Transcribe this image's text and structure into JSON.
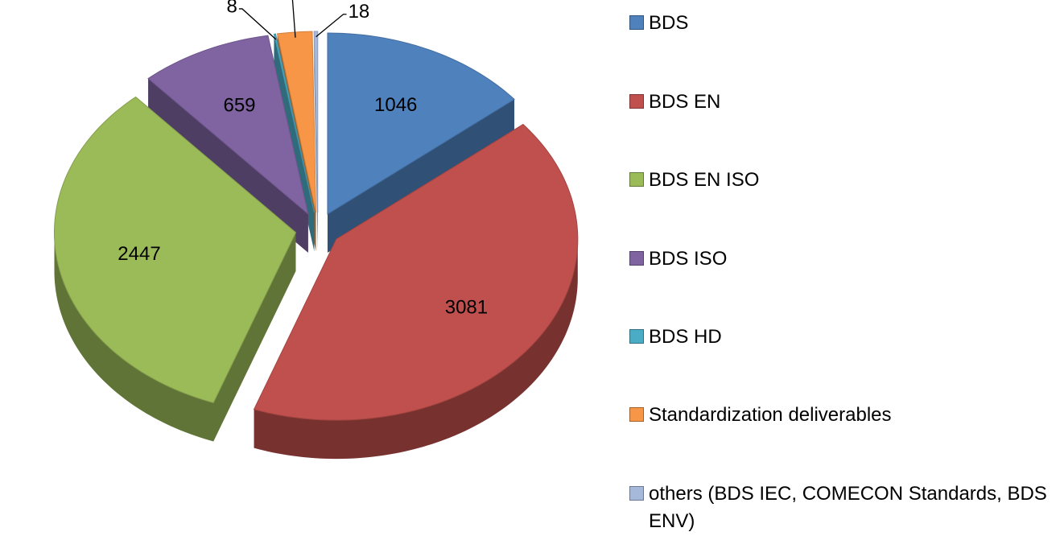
{
  "chart_data": {
    "type": "pie",
    "categories": [
      "BDS",
      "BDS EN",
      "BDS EN ISO",
      "BDS ISO",
      "BDS HD",
      "Standardization deliverables",
      "others (BDS IEC, COMECON Standards, BDS ENV)"
    ],
    "values": [
      1046,
      3081,
      2447,
      659,
      8,
      172,
      18
    ],
    "colors": [
      "#4f81bd",
      "#c0504d",
      "#9bbb59",
      "#8064a2",
      "#4bacc6",
      "#f79646",
      "#a7b9da"
    ],
    "legend": "right"
  }
}
